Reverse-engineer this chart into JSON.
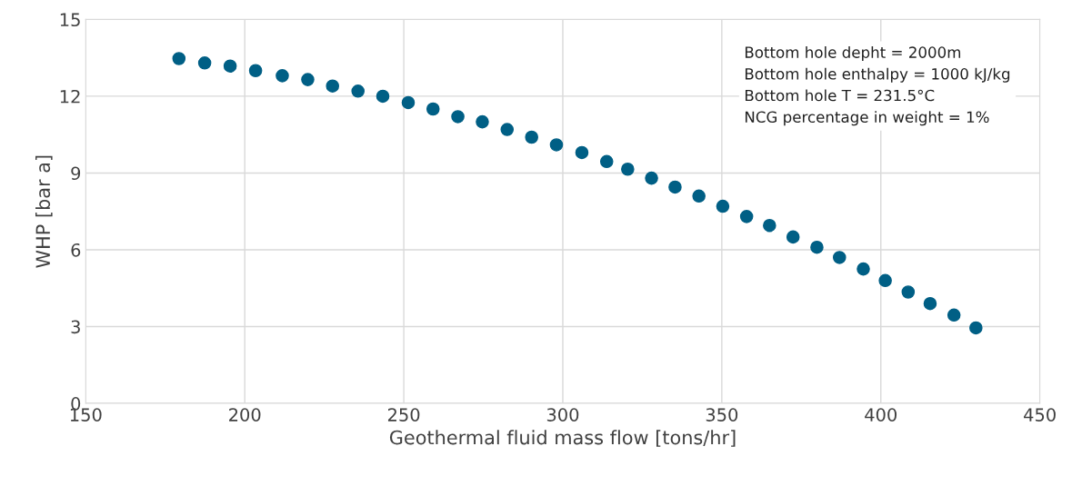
{
  "chart_data": {
    "type": "scatter",
    "xlabel": "Geothermal fluid mass flow [tons/hr]",
    "ylabel": "WHP [bar a]",
    "x": [
      179.3,
      187.4,
      195.4,
      203.4,
      211.8,
      219.8,
      227.6,
      235.6,
      243.4,
      251.4,
      259.2,
      267,
      274.7,
      282.5,
      290.2,
      298,
      306,
      313.8,
      320.4,
      327.9,
      335.3,
      342.8,
      350.3,
      357.8,
      365,
      372.4,
      379.9,
      387,
      394.5,
      401.4,
      408.6,
      415.5,
      423,
      429.9
    ],
    "series": [
      {
        "color": "#005f85",
        "values": [
          13.47,
          13.3,
          13.18,
          13.0,
          12.8,
          12.65,
          12.4,
          12.2,
          12.0,
          11.75,
          11.5,
          11.2,
          11.0,
          10.7,
          10.4,
          10.1,
          9.8,
          9.45,
          9.15,
          8.8,
          8.45,
          8.1,
          7.7,
          7.3,
          6.95,
          6.5,
          6.1,
          5.7,
          5.25,
          4.8,
          4.35,
          3.9,
          3.45,
          2.95
        ]
      }
    ],
    "xlim": [
      150,
      450
    ],
    "xticks": [
      150,
      200,
      250,
      300,
      350,
      400,
      450
    ],
    "ylim": [
      0,
      15
    ],
    "yticks": [
      0,
      3,
      6,
      9,
      12,
      15
    ],
    "grid": true,
    "marker": "circle",
    "annotations": [
      "Bottom hole depht = 2000m",
      "Bottom hole enthalpy = 1000 kJ/kg",
      "Bottom hole T = 231.5°C",
      "NCG percentage in weight = 1%"
    ]
  }
}
